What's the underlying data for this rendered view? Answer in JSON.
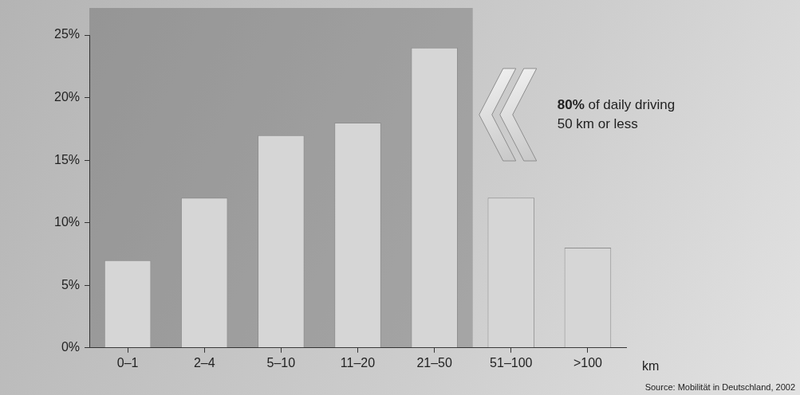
{
  "chart_data": {
    "type": "bar",
    "categories": [
      "0–1",
      "2–4",
      "5–10",
      "11–20",
      "21–50",
      "51–100",
      ">100"
    ],
    "values": [
      7,
      12,
      17,
      18,
      24,
      12,
      8
    ],
    "color": "#d6d6d6",
    "ylim": [
      0,
      25
    ],
    "yticks": [
      {
        "value": 0,
        "label": "0%"
      },
      {
        "value": 5,
        "label": "5%"
      },
      {
        "value": 10,
        "label": "10%"
      },
      {
        "value": 15,
        "label": "15%"
      },
      {
        "value": 20,
        "label": "20%"
      },
      {
        "value": 25,
        "label": "25%"
      }
    ],
    "grid": false,
    "xlabel": "km",
    "annotations": [
      "80% of daily driving",
      "50 km or less"
    ],
    "source": "Source: Mobilität in Deutschland, 2002"
  }
}
